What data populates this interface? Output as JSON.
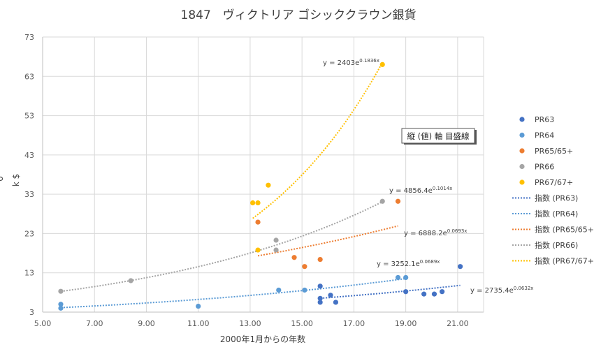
{
  "chart_data": {
    "type": "scatter",
    "title": "1847　ヴィクトリア ゴシッククラウン銀貨",
    "xlabel": "2000年1月からの年数",
    "ylabel": "k $",
    "ylabel_fragment": "o",
    "xlim": [
      5,
      22
    ],
    "ylim": [
      3,
      73
    ],
    "x_ticks": [
      "5.00",
      "7.00",
      "9.00",
      "11.00",
      "13.00",
      "15.00",
      "17.00",
      "19.00",
      "21.00"
    ],
    "y_ticks": [
      "3",
      "13",
      "23",
      "33",
      "43",
      "53",
      "63",
      "73"
    ],
    "grid": true,
    "legend_position": "right",
    "series": [
      {
        "name": "PR63",
        "color": "#4472C4",
        "points": [
          [
            15.7,
            5.5
          ],
          [
            15.7,
            6.5
          ],
          [
            15.7,
            9.6
          ],
          [
            16.1,
            7.3
          ],
          [
            16.3,
            5.5
          ],
          [
            19.0,
            8.2
          ],
          [
            19.7,
            7.6
          ],
          [
            20.1,
            7.6
          ],
          [
            20.4,
            8.2
          ],
          [
            21.1,
            14.6
          ]
        ]
      },
      {
        "name": "PR64",
        "color": "#5B9BD5",
        "points": [
          [
            5.7,
            4.0
          ],
          [
            5.7,
            5.0
          ],
          [
            11.0,
            4.5
          ],
          [
            14.1,
            8.6
          ],
          [
            15.1,
            8.6
          ],
          [
            18.7,
            11.8
          ],
          [
            19.0,
            11.8
          ]
        ]
      },
      {
        "name": "PR65/65+",
        "color": "#ED7D31",
        "points": [
          [
            13.3,
            25.9
          ],
          [
            14.7,
            16.9
          ],
          [
            15.1,
            14.6
          ],
          [
            15.7,
            16.4
          ],
          [
            18.7,
            31.2
          ]
        ]
      },
      {
        "name": "PR66",
        "color": "#A5A5A5",
        "points": [
          [
            5.7,
            8.3
          ],
          [
            8.4,
            11.0
          ],
          [
            14.0,
            21.3
          ],
          [
            14.0,
            18.8
          ],
          [
            18.1,
            31.2
          ]
        ]
      },
      {
        "name": "PR67/67+",
        "color": "#FFC000",
        "points": [
          [
            13.1,
            30.8
          ],
          [
            13.3,
            30.8
          ],
          [
            13.7,
            35.3
          ],
          [
            13.3,
            18.8
          ],
          [
            18.1,
            66.0
          ]
        ]
      }
    ],
    "trendlines": [
      {
        "name": "指数 (PR63)",
        "series": "PR63",
        "a": 2735.4,
        "b": 0.0632,
        "x_range": [
          15.7,
          21.1
        ],
        "color": "#4472C4",
        "label_base": "y = 2735.4e",
        "label_exp": "0.0632x"
      },
      {
        "name": "指数 (PR64)",
        "series": "PR64",
        "a": 3252.1,
        "b": 0.0689,
        "x_range": [
          5.7,
          19.0
        ],
        "color": "#5B9BD5",
        "label_base": "y = 3252.1e",
        "label_exp": "0.0689x"
      },
      {
        "name": "指数 (PR65/65+)",
        "series": "PR65/65+",
        "a": 6888.2,
        "b": 0.0693,
        "x_range": [
          13.3,
          18.7
        ],
        "color": "#ED7D31",
        "label_base": "y = 6888.2e",
        "label_exp": "0.0693x"
      },
      {
        "name": "指数 (PR66)",
        "series": "PR66",
        "a": 4856.4,
        "b": 0.1014,
        "x_range": [
          5.7,
          18.1
        ],
        "color": "#A5A5A5",
        "label_base": "y = 4856.4e",
        "label_exp": "0.1014x"
      },
      {
        "name": "指数 (PR67/67+)",
        "series": "PR67/67+",
        "a": 2403,
        "b": 0.1836,
        "x_range": [
          13.1,
          18.1
        ],
        "color": "#FFC000",
        "label_base": "y = 2403e",
        "label_exp": "0.1836x"
      }
    ]
  },
  "tooltip": {
    "text": "縦 (値) 軸 目盛線"
  }
}
